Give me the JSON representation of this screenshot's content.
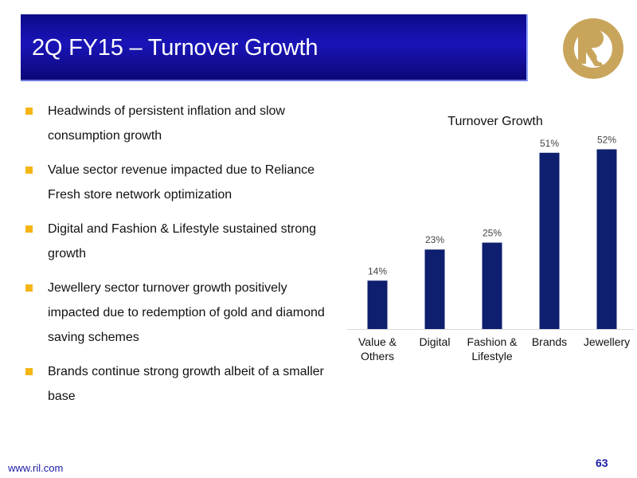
{
  "slide": {
    "title": "2Q FY15 – Turnover Growth",
    "footer_url": "www.ril.com",
    "page_number": "63",
    "logo_icon": "reliance-logo-icon"
  },
  "bullets": [
    "Headwinds of persistent inflation and slow consumption growth",
    "Value sector revenue impacted due to Reliance Fresh store network optimization",
    "Digital and Fashion & Lifestyle sustained strong growth",
    "Jewellery sector turnover growth positively impacted due to redemption of gold and diamond saving schemes",
    "Brands continue strong growth albeit of a smaller base"
  ],
  "colors": {
    "title_bar": "#1a14b8",
    "bullet": "#f5b514",
    "bar": "#0d1f6e",
    "logo": "#c9a55c",
    "footer_text": "#1c1ca8"
  },
  "chart_data": {
    "type": "bar",
    "title": "Turnover Growth",
    "categories": [
      [
        "Value &",
        "Others"
      ],
      [
        "Digital"
      ],
      [
        "Fashion &",
        "Lifestyle"
      ],
      [
        "Brands"
      ],
      [
        "Jewellery"
      ]
    ],
    "values": [
      14,
      23,
      25,
      51,
      52
    ],
    "data_labels": [
      "14%",
      "23%",
      "25%",
      "51%",
      "52%"
    ],
    "ylim": [
      0,
      60
    ],
    "grid": false,
    "legend": "none"
  }
}
